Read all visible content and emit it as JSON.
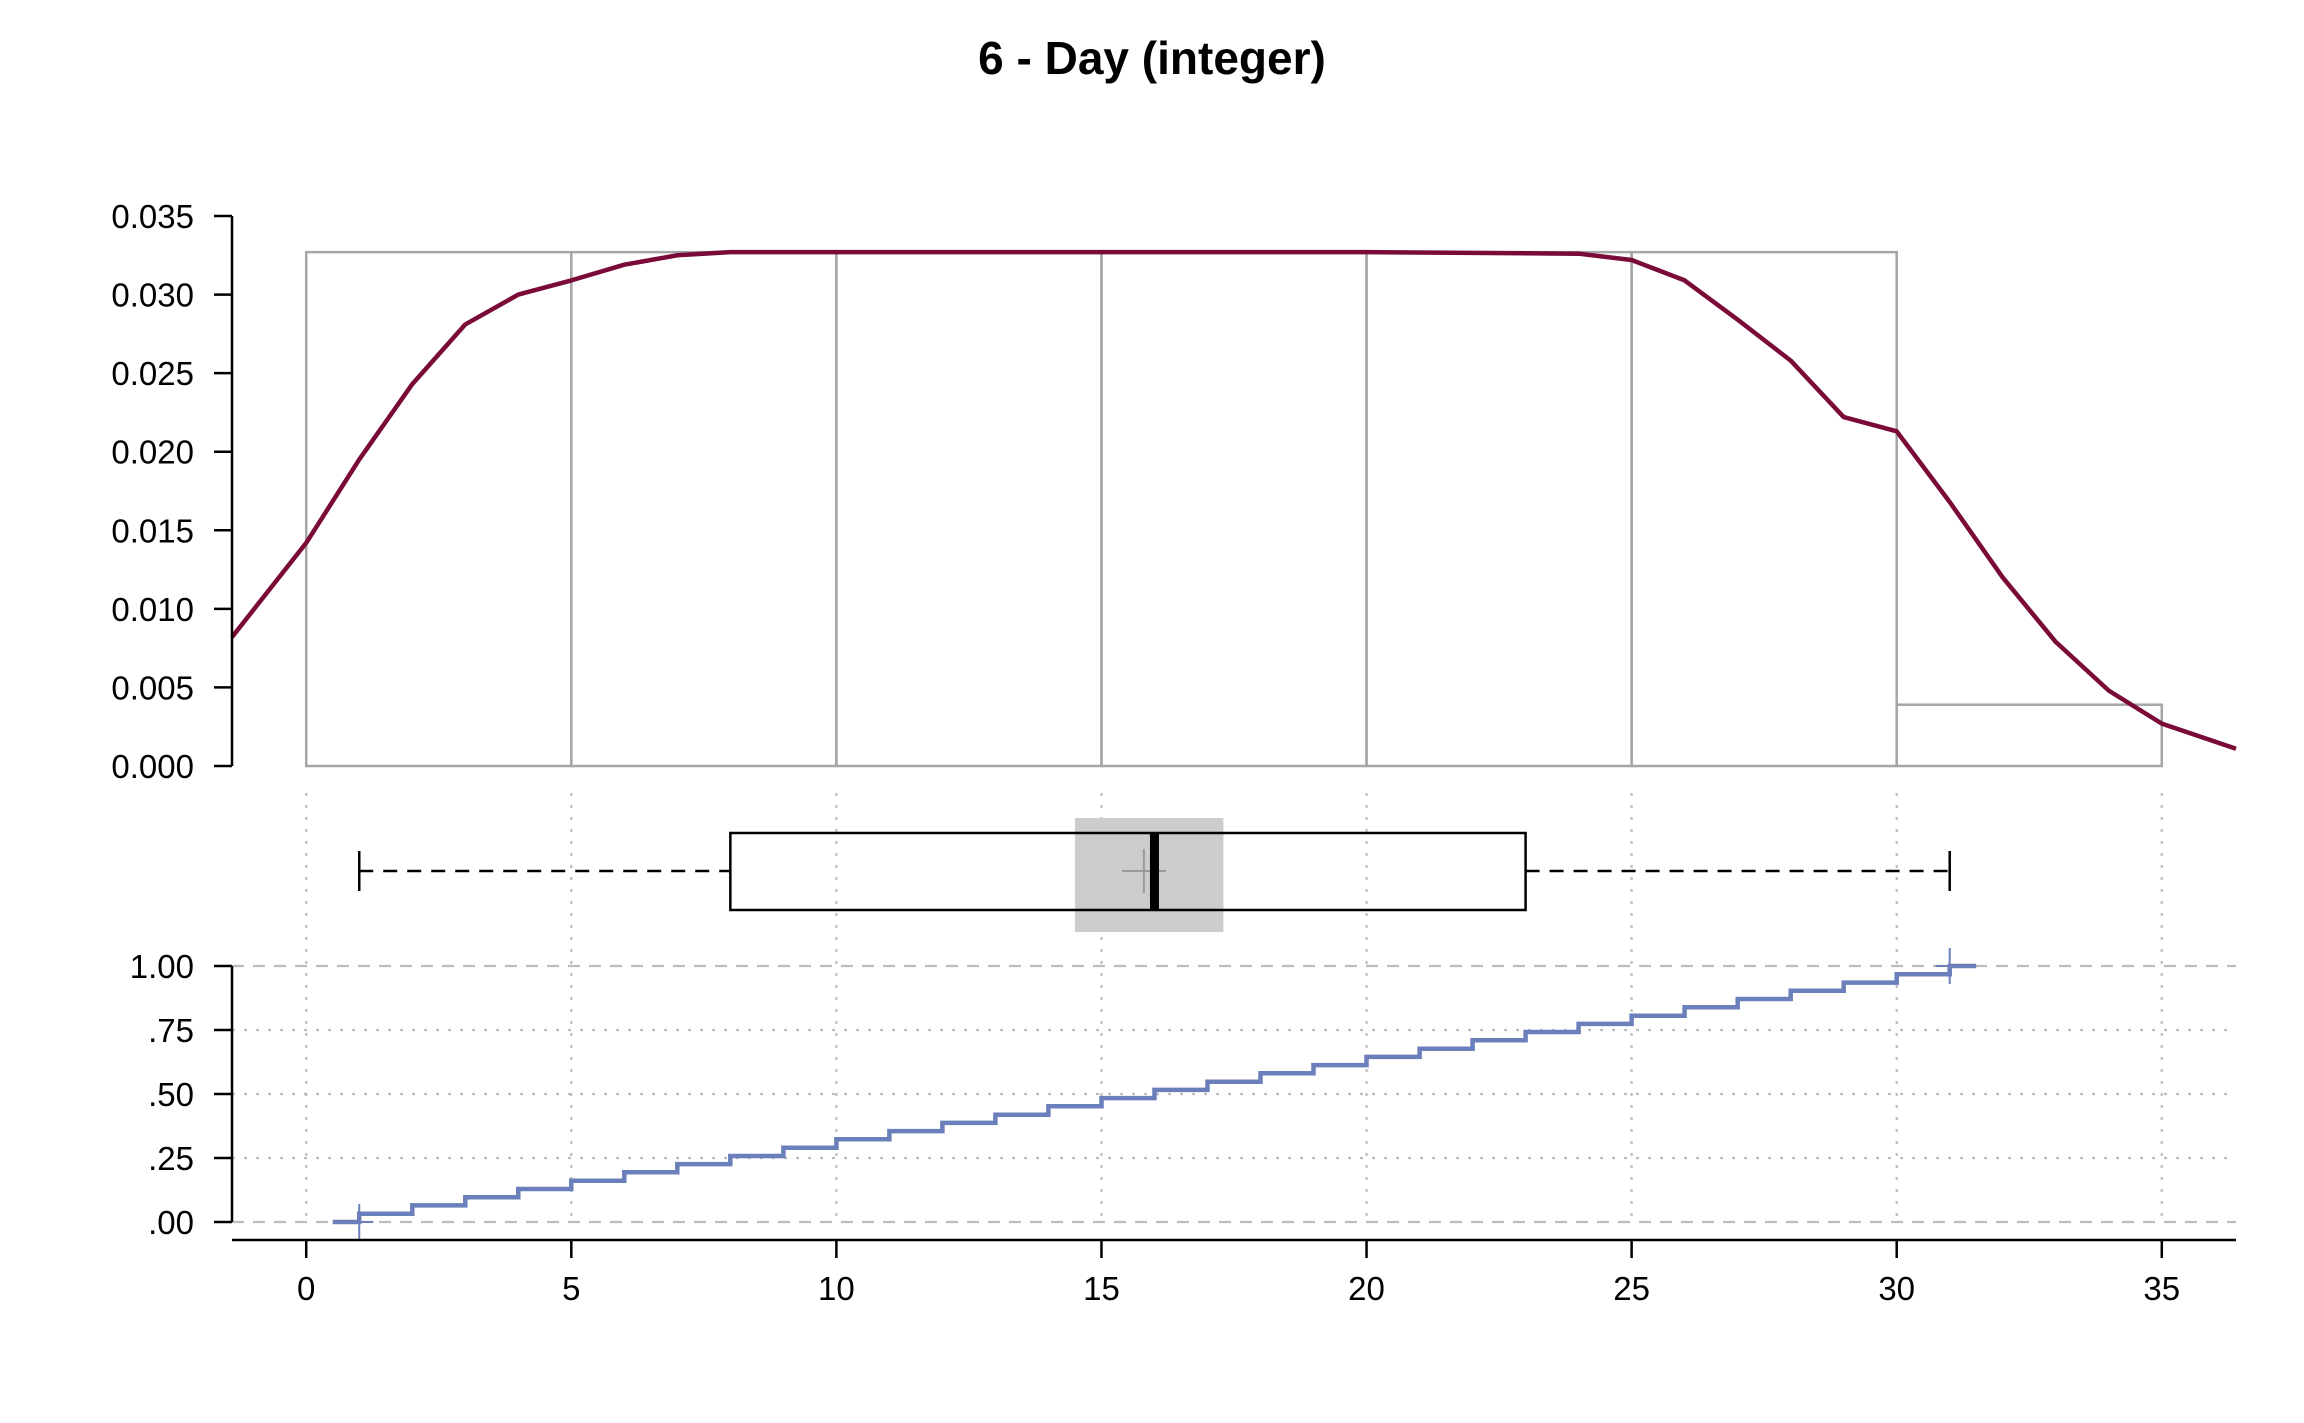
{
  "title": "6 - Day (integer)",
  "colors": {
    "density": "#7a0a37",
    "ecdf": "#6b7fba",
    "histogram": "#a6a6a6",
    "grid": "#bdbdbd",
    "axis": "#000000",
    "median_ci": "#cccccc"
  },
  "chart_data": [
    {
      "type": "histogram",
      "xlim": [
        -1.4,
        36.4
      ],
      "ylim": [
        0,
        0.035
      ],
      "ytick_labels": [
        "0.000",
        "0.005",
        "0.010",
        "0.015",
        "0.020",
        "0.025",
        "0.030",
        "0.035"
      ],
      "yticks": [
        0,
        0.005,
        0.01,
        0.015,
        0.02,
        0.025,
        0.03,
        0.035
      ],
      "bins": [
        {
          "x0": 0,
          "x1": 5,
          "density": 0.0327
        },
        {
          "x0": 5,
          "x1": 10,
          "density": 0.0327
        },
        {
          "x0": 10,
          "x1": 15,
          "density": 0.0327
        },
        {
          "x0": 15,
          "x1": 20,
          "density": 0.0327
        },
        {
          "x0": 20,
          "x1": 25,
          "density": 0.0327
        },
        {
          "x0": 25,
          "x1": 30,
          "density": 0.0327
        },
        {
          "x0": 30,
          "x1": 35,
          "density": 0.0039
        }
      ],
      "density_curve": {
        "x": [
          -1.4,
          0,
          1,
          2,
          3,
          4,
          5,
          6,
          7,
          8,
          10,
          15,
          20,
          24,
          25,
          26,
          27,
          28,
          29,
          30,
          31,
          32,
          33,
          34,
          35,
          36.4
        ],
        "y": [
          0.0082,
          0.0142,
          0.0195,
          0.0243,
          0.0281,
          0.03,
          0.0309,
          0.0319,
          0.0325,
          0.0327,
          0.0327,
          0.0327,
          0.0327,
          0.0326,
          0.0322,
          0.0309,
          0.0284,
          0.0258,
          0.0222,
          0.0213,
          0.0168,
          0.012,
          0.0079,
          0.0048,
          0.0027,
          0.0011
        ]
      }
    },
    {
      "type": "boxplot",
      "whisker_low": 1,
      "q1": 8,
      "median": 16,
      "q3": 23,
      "whisker_high": 31,
      "mean": 15.8,
      "median_ci": [
        14.5,
        17.3
      ]
    },
    {
      "type": "ecdf",
      "ylim": [
        0,
        1
      ],
      "yticks": [
        0,
        0.25,
        0.5,
        0.75,
        1
      ],
      "ytick_labels": [
        ".00",
        ".25",
        ".50",
        ".75",
        "1.00"
      ],
      "xticks": [
        0,
        5,
        10,
        15,
        20,
        25,
        30,
        35
      ],
      "xtick_labels": [
        "0",
        "5",
        "10",
        "15",
        "20",
        "25",
        "30",
        "35"
      ],
      "step_x": [
        1,
        2,
        3,
        4,
        5,
        6,
        7,
        8,
        9,
        10,
        11,
        12,
        13,
        14,
        15,
        16,
        17,
        18,
        19,
        20,
        21,
        22,
        23,
        24,
        25,
        26,
        27,
        28,
        29,
        30,
        31
      ],
      "step_y": [
        0.032,
        0.065,
        0.097,
        0.129,
        0.161,
        0.194,
        0.226,
        0.258,
        0.29,
        0.323,
        0.355,
        0.387,
        0.419,
        0.452,
        0.484,
        0.516,
        0.548,
        0.581,
        0.613,
        0.645,
        0.677,
        0.71,
        0.742,
        0.774,
        0.806,
        0.839,
        0.871,
        0.903,
        0.935,
        0.968,
        1.0
      ]
    }
  ]
}
